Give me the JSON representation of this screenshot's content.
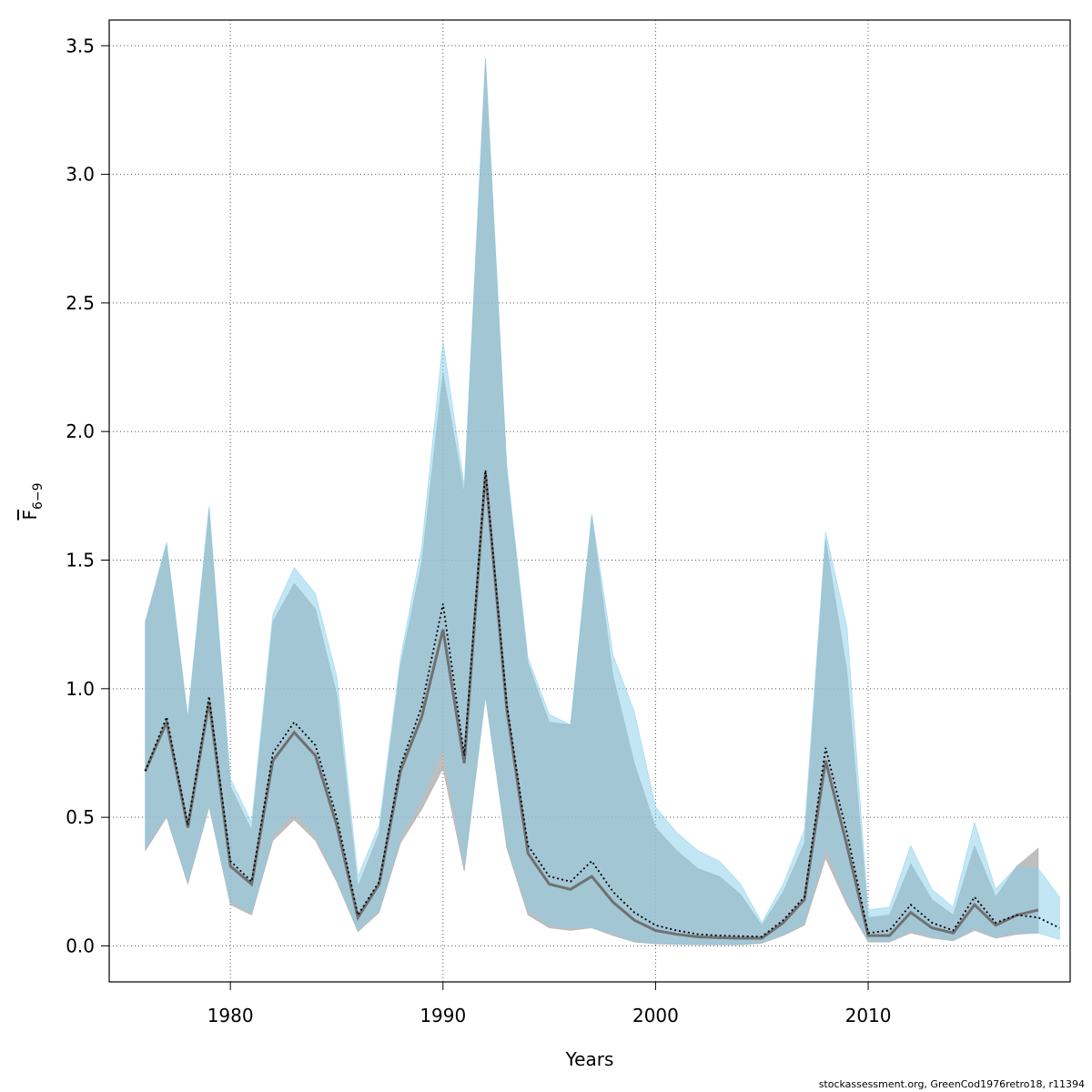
{
  "chart_data": {
    "type": "area",
    "xlabel": "Years",
    "ylabel": "F",
    "ylabel_subscript": "6−9",
    "xlim": [
      1974.3,
      2019.5
    ],
    "ylim": [
      -0.14,
      3.6
    ],
    "x_ticks": [
      1980,
      1990,
      2000,
      2010
    ],
    "x_tick_labels": [
      "1980",
      "1990",
      "2000",
      "2010"
    ],
    "y_ticks": [
      0.0,
      0.5,
      1.0,
      1.5,
      2.0,
      2.5,
      3.0,
      3.5
    ],
    "y_tick_labels": [
      "0.0",
      "0.5",
      "1.0",
      "1.5",
      "2.0",
      "2.5",
      "3.0",
      "3.5"
    ],
    "grid": true,
    "colors": {
      "gray_band": "#a8a8a8",
      "blue_band": "#87ceeb",
      "line": "#000000",
      "grid": "#555555"
    },
    "series": [
      {
        "style": "gray-band-with-solid-line",
        "x": [
          1976,
          1977,
          1978,
          1979,
          1980,
          1981,
          1982,
          1983,
          1984,
          1985,
          1986,
          1987,
          1988,
          1989,
          1990,
          1991,
          1992,
          1993,
          1994,
          1995,
          1996,
          1997,
          1998,
          1999,
          2000,
          2001,
          2002,
          2003,
          2004,
          2005,
          2006,
          2007,
          2008,
          2009,
          2010,
          2011,
          2012,
          2013,
          2014,
          2015,
          2016,
          2017,
          2018
        ],
        "values": [
          0.68,
          0.87,
          0.46,
          0.95,
          0.31,
          0.24,
          0.72,
          0.83,
          0.74,
          0.47,
          0.11,
          0.24,
          0.68,
          0.89,
          1.23,
          0.71,
          1.84,
          0.92,
          0.36,
          0.24,
          0.22,
          0.27,
          0.17,
          0.1,
          0.06,
          0.045,
          0.035,
          0.032,
          0.03,
          0.03,
          0.09,
          0.18,
          0.72,
          0.39,
          0.04,
          0.04,
          0.13,
          0.07,
          0.05,
          0.16,
          0.08,
          0.12,
          0.14
        ],
        "lower": [
          0.37,
          0.5,
          0.24,
          0.54,
          0.16,
          0.12,
          0.41,
          0.49,
          0.41,
          0.25,
          0.055,
          0.13,
          0.4,
          0.53,
          0.69,
          0.29,
          0.97,
          0.38,
          0.12,
          0.07,
          0.06,
          0.07,
          0.04,
          0.015,
          0.008,
          0.005,
          0.004,
          0.004,
          0.004,
          0.01,
          0.04,
          0.08,
          0.34,
          0.16,
          0.015,
          0.015,
          0.05,
          0.03,
          0.02,
          0.06,
          0.03,
          0.045,
          0.05
        ],
        "upper": [
          1.26,
          1.56,
          0.88,
          1.7,
          0.62,
          0.45,
          1.26,
          1.41,
          1.31,
          0.98,
          0.23,
          0.44,
          1.09,
          1.49,
          2.23,
          1.76,
          3.45,
          1.85,
          1.1,
          0.87,
          0.86,
          1.67,
          1.05,
          0.71,
          0.46,
          0.37,
          0.3,
          0.27,
          0.2,
          0.08,
          0.21,
          0.4,
          1.58,
          1.07,
          0.11,
          0.12,
          0.32,
          0.18,
          0.12,
          0.39,
          0.19,
          0.31,
          0.38
        ]
      },
      {
        "style": "blue-band-with-dotted-line",
        "x": [
          1976,
          1977,
          1978,
          1979,
          1980,
          1981,
          1982,
          1983,
          1984,
          1985,
          1986,
          1987,
          1988,
          1989,
          1990,
          1991,
          1992,
          1993,
          1994,
          1995,
          1996,
          1997,
          1998,
          1999,
          2000,
          2001,
          2002,
          2003,
          2004,
          2005,
          2006,
          2007,
          2008,
          2009,
          2010,
          2011,
          2012,
          2013,
          2014,
          2015,
          2016,
          2017,
          2018,
          2019
        ],
        "values": [
          0.68,
          0.89,
          0.47,
          0.97,
          0.33,
          0.25,
          0.75,
          0.87,
          0.78,
          0.5,
          0.12,
          0.25,
          0.7,
          0.93,
          1.33,
          0.74,
          1.85,
          0.94,
          0.39,
          0.27,
          0.25,
          0.33,
          0.21,
          0.13,
          0.08,
          0.06,
          0.045,
          0.04,
          0.038,
          0.036,
          0.1,
          0.19,
          0.77,
          0.44,
          0.05,
          0.06,
          0.16,
          0.09,
          0.06,
          0.19,
          0.09,
          0.12,
          0.11,
          0.07
        ],
        "lower": [
          0.38,
          0.51,
          0.25,
          0.55,
          0.17,
          0.13,
          0.43,
          0.52,
          0.43,
          0.26,
          0.06,
          0.14,
          0.42,
          0.57,
          0.77,
          0.31,
          0.98,
          0.4,
          0.14,
          0.08,
          0.07,
          0.07,
          0.05,
          0.02,
          0.01,
          0.008,
          0.006,
          0.006,
          0.006,
          0.015,
          0.045,
          0.09,
          0.38,
          0.18,
          0.02,
          0.02,
          0.06,
          0.035,
          0.025,
          0.07,
          0.035,
          0.05,
          0.05,
          0.025
        ],
        "upper": [
          1.26,
          1.57,
          0.89,
          1.71,
          0.65,
          0.48,
          1.29,
          1.47,
          1.37,
          1.05,
          0.27,
          0.47,
          1.12,
          1.55,
          2.35,
          1.79,
          3.45,
          1.87,
          1.12,
          0.9,
          0.86,
          1.68,
          1.13,
          0.91,
          0.54,
          0.44,
          0.37,
          0.33,
          0.24,
          0.09,
          0.24,
          0.45,
          1.61,
          1.24,
          0.14,
          0.15,
          0.39,
          0.22,
          0.15,
          0.48,
          0.22,
          0.31,
          0.3,
          0.19
        ]
      }
    ]
  },
  "footer": {
    "source_text": "stockassessment.org, GreenCod1976retro18, r11394"
  }
}
